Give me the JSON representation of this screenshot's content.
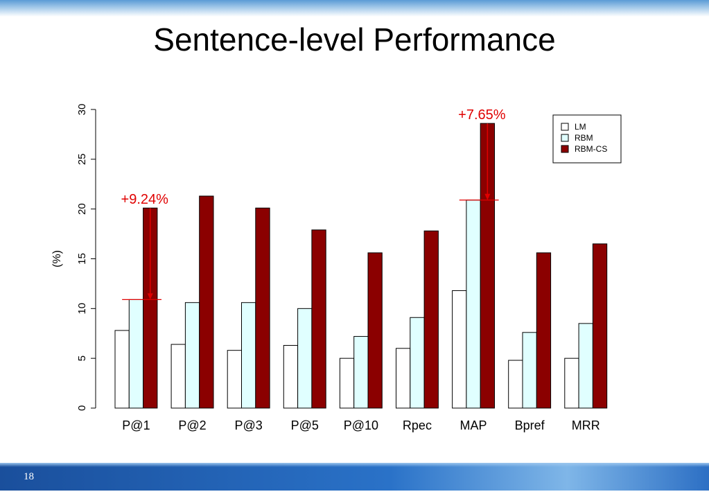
{
  "slide": {
    "title": "Sentence-level Performance",
    "page_number": "18"
  },
  "chart_data": {
    "type": "bar",
    "categories": [
      "P@1",
      "P@2",
      "P@3",
      "P@5",
      "P@10",
      "Rpec",
      "MAP",
      "Bpref",
      "MRR"
    ],
    "series": [
      {
        "name": "LM",
        "values": [
          7.8,
          6.4,
          5.8,
          6.3,
          5.0,
          6.0,
          11.8,
          4.8,
          5.0
        ],
        "color": "#ffffff"
      },
      {
        "name": "RBM",
        "values": [
          10.9,
          10.6,
          10.6,
          10.0,
          7.2,
          9.1,
          20.9,
          7.6,
          8.5
        ],
        "color": "#e0ffff"
      },
      {
        "name": "RBM-CS",
        "values": [
          20.1,
          21.3,
          20.1,
          17.9,
          15.6,
          17.8,
          28.6,
          15.6,
          16.5
        ],
        "color": "#8b0000"
      }
    ],
    "ylabel": "(%)",
    "ylim": [
      0,
      30
    ],
    "yticks": [
      0,
      5,
      10,
      15,
      20,
      25,
      30
    ],
    "legend_position": "top-right",
    "annotations": [
      {
        "text": "+9.24%",
        "category": "P@1",
        "from": 20.1,
        "to": 10.9,
        "color": "#e00000"
      },
      {
        "text": "+7.65%",
        "category": "MAP",
        "from": 28.6,
        "to": 20.9,
        "color": "#e00000"
      }
    ]
  }
}
